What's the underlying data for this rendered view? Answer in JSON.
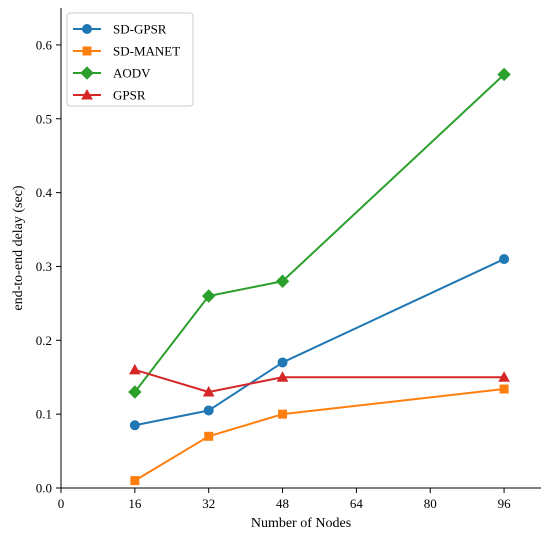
{
  "chart_data": {
    "type": "line",
    "xlabel": "Number of Nodes",
    "ylabel": "end-to-end delay (sec)",
    "xlim": [
      0,
      104
    ],
    "ylim": [
      0,
      0.65
    ],
    "x_ticks": [
      0,
      16,
      32,
      48,
      64,
      80,
      96
    ],
    "y_ticks": [
      0.0,
      0.1,
      0.2,
      0.3,
      0.4,
      0.5,
      0.6
    ],
    "x_tick_labels": [
      "0",
      "16",
      "32",
      "48",
      "64",
      "80",
      "96"
    ],
    "y_tick_labels": [
      "0.0",
      "0.1",
      "0.2",
      "0.3",
      "0.4",
      "0.5",
      "0.6"
    ],
    "grid": false,
    "legend_position": "top-left",
    "x": [
      16,
      32,
      48,
      96
    ],
    "series": [
      {
        "name": "SD-GPSR",
        "values": [
          0.085,
          0.105,
          0.17,
          0.31
        ],
        "color": "#1f77b4",
        "marker": "circle"
      },
      {
        "name": "SD-MANET",
        "values": [
          0.01,
          0.07,
          0.1,
          0.134
        ],
        "color": "#ff7f0e",
        "marker": "square"
      },
      {
        "name": "AODV",
        "values": [
          0.13,
          0.26,
          0.28,
          0.56
        ],
        "color": "#2ca02c",
        "marker": "diamond"
      },
      {
        "name": "GPSR",
        "values": [
          0.16,
          0.13,
          0.15,
          0.15
        ],
        "color": "#d62728",
        "marker": "triangle"
      }
    ]
  }
}
